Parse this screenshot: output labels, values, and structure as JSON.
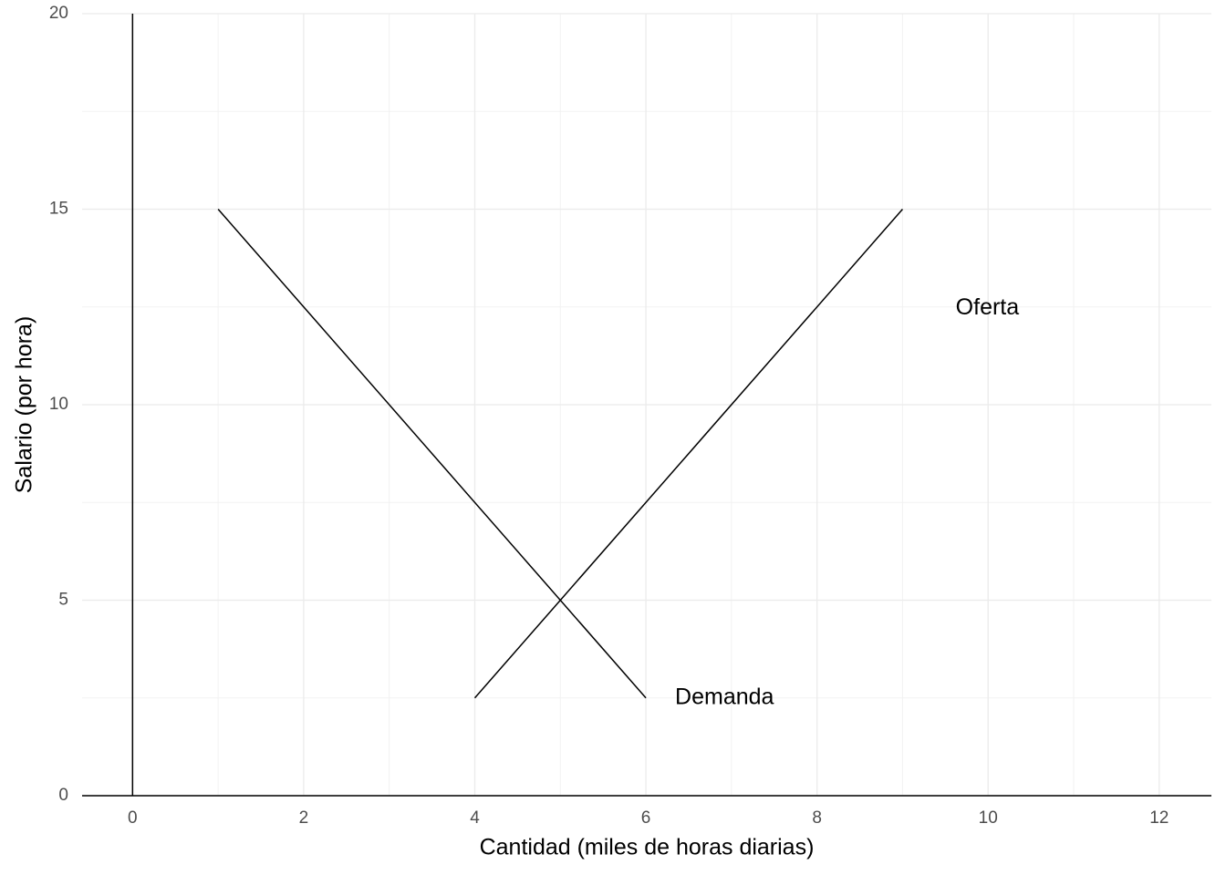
{
  "chart_data": {
    "type": "line",
    "x_label": "Cantidad (miles de horas diarias)",
    "y_label": "Salario (por hora)",
    "series": [
      {
        "name": "Demanda",
        "color": "#000000",
        "x": [
          1,
          6
        ],
        "values": [
          15,
          2.5
        ]
      },
      {
        "name": "Oferta",
        "color": "#000000",
        "x": [
          4,
          9
        ],
        "values": [
          2.5,
          15
        ]
      }
    ],
    "xlim": [
      -0.59,
      12.61
    ],
    "xticks": [
      0,
      2,
      4,
      6,
      8,
      10,
      12
    ],
    "ylim": [
      0,
      20
    ],
    "yticks": [
      0,
      5,
      10,
      15,
      20
    ],
    "grid": true
  }
}
